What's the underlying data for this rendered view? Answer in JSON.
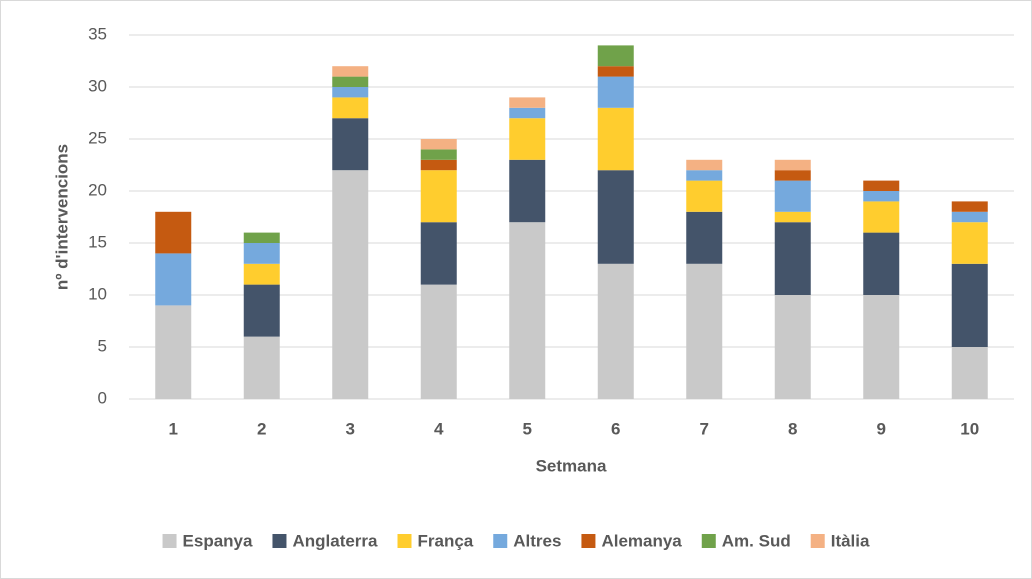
{
  "chart_data": {
    "type": "stacked_bar",
    "xlabel": "Setmana",
    "ylabel": "nº d'intervencions",
    "categories": [
      "1",
      "2",
      "3",
      "4",
      "5",
      "6",
      "7",
      "8",
      "9",
      "10"
    ],
    "series": [
      {
        "name": "Espanya",
        "color": "#c9c9c9",
        "values": [
          9,
          6,
          22,
          11,
          17,
          13,
          13,
          10,
          10,
          5
        ]
      },
      {
        "name": "Anglaterra",
        "color": "#44546a",
        "values": [
          0,
          5,
          5,
          6,
          6,
          9,
          5,
          7,
          6,
          8
        ]
      },
      {
        "name": "França",
        "color": "#ffcd2e",
        "values": [
          0,
          2,
          2,
          5,
          4,
          6,
          3,
          1,
          3,
          4
        ]
      },
      {
        "name": "Altres",
        "color": "#75a9dd",
        "values": [
          5,
          2,
          1,
          0,
          1,
          3,
          1,
          3,
          1,
          1
        ]
      },
      {
        "name": "Alemanya",
        "color": "#c55a11",
        "values": [
          4,
          0,
          0,
          1,
          0,
          1,
          0,
          1,
          1,
          1
        ]
      },
      {
        "name": "Am. Sud",
        "color": "#70a24a",
        "values": [
          0,
          1,
          1,
          1,
          0,
          2,
          0,
          0,
          0,
          0
        ]
      },
      {
        "name": "Itàlia",
        "color": "#f4b183",
        "values": [
          0,
          0,
          1,
          1,
          1,
          0,
          1,
          1,
          0,
          0
        ]
      }
    ],
    "ylim": [
      0,
      35
    ],
    "yticks": [
      0,
      5,
      10,
      15,
      20,
      25,
      30,
      35
    ],
    "grid": true,
    "legend": "bottom"
  }
}
